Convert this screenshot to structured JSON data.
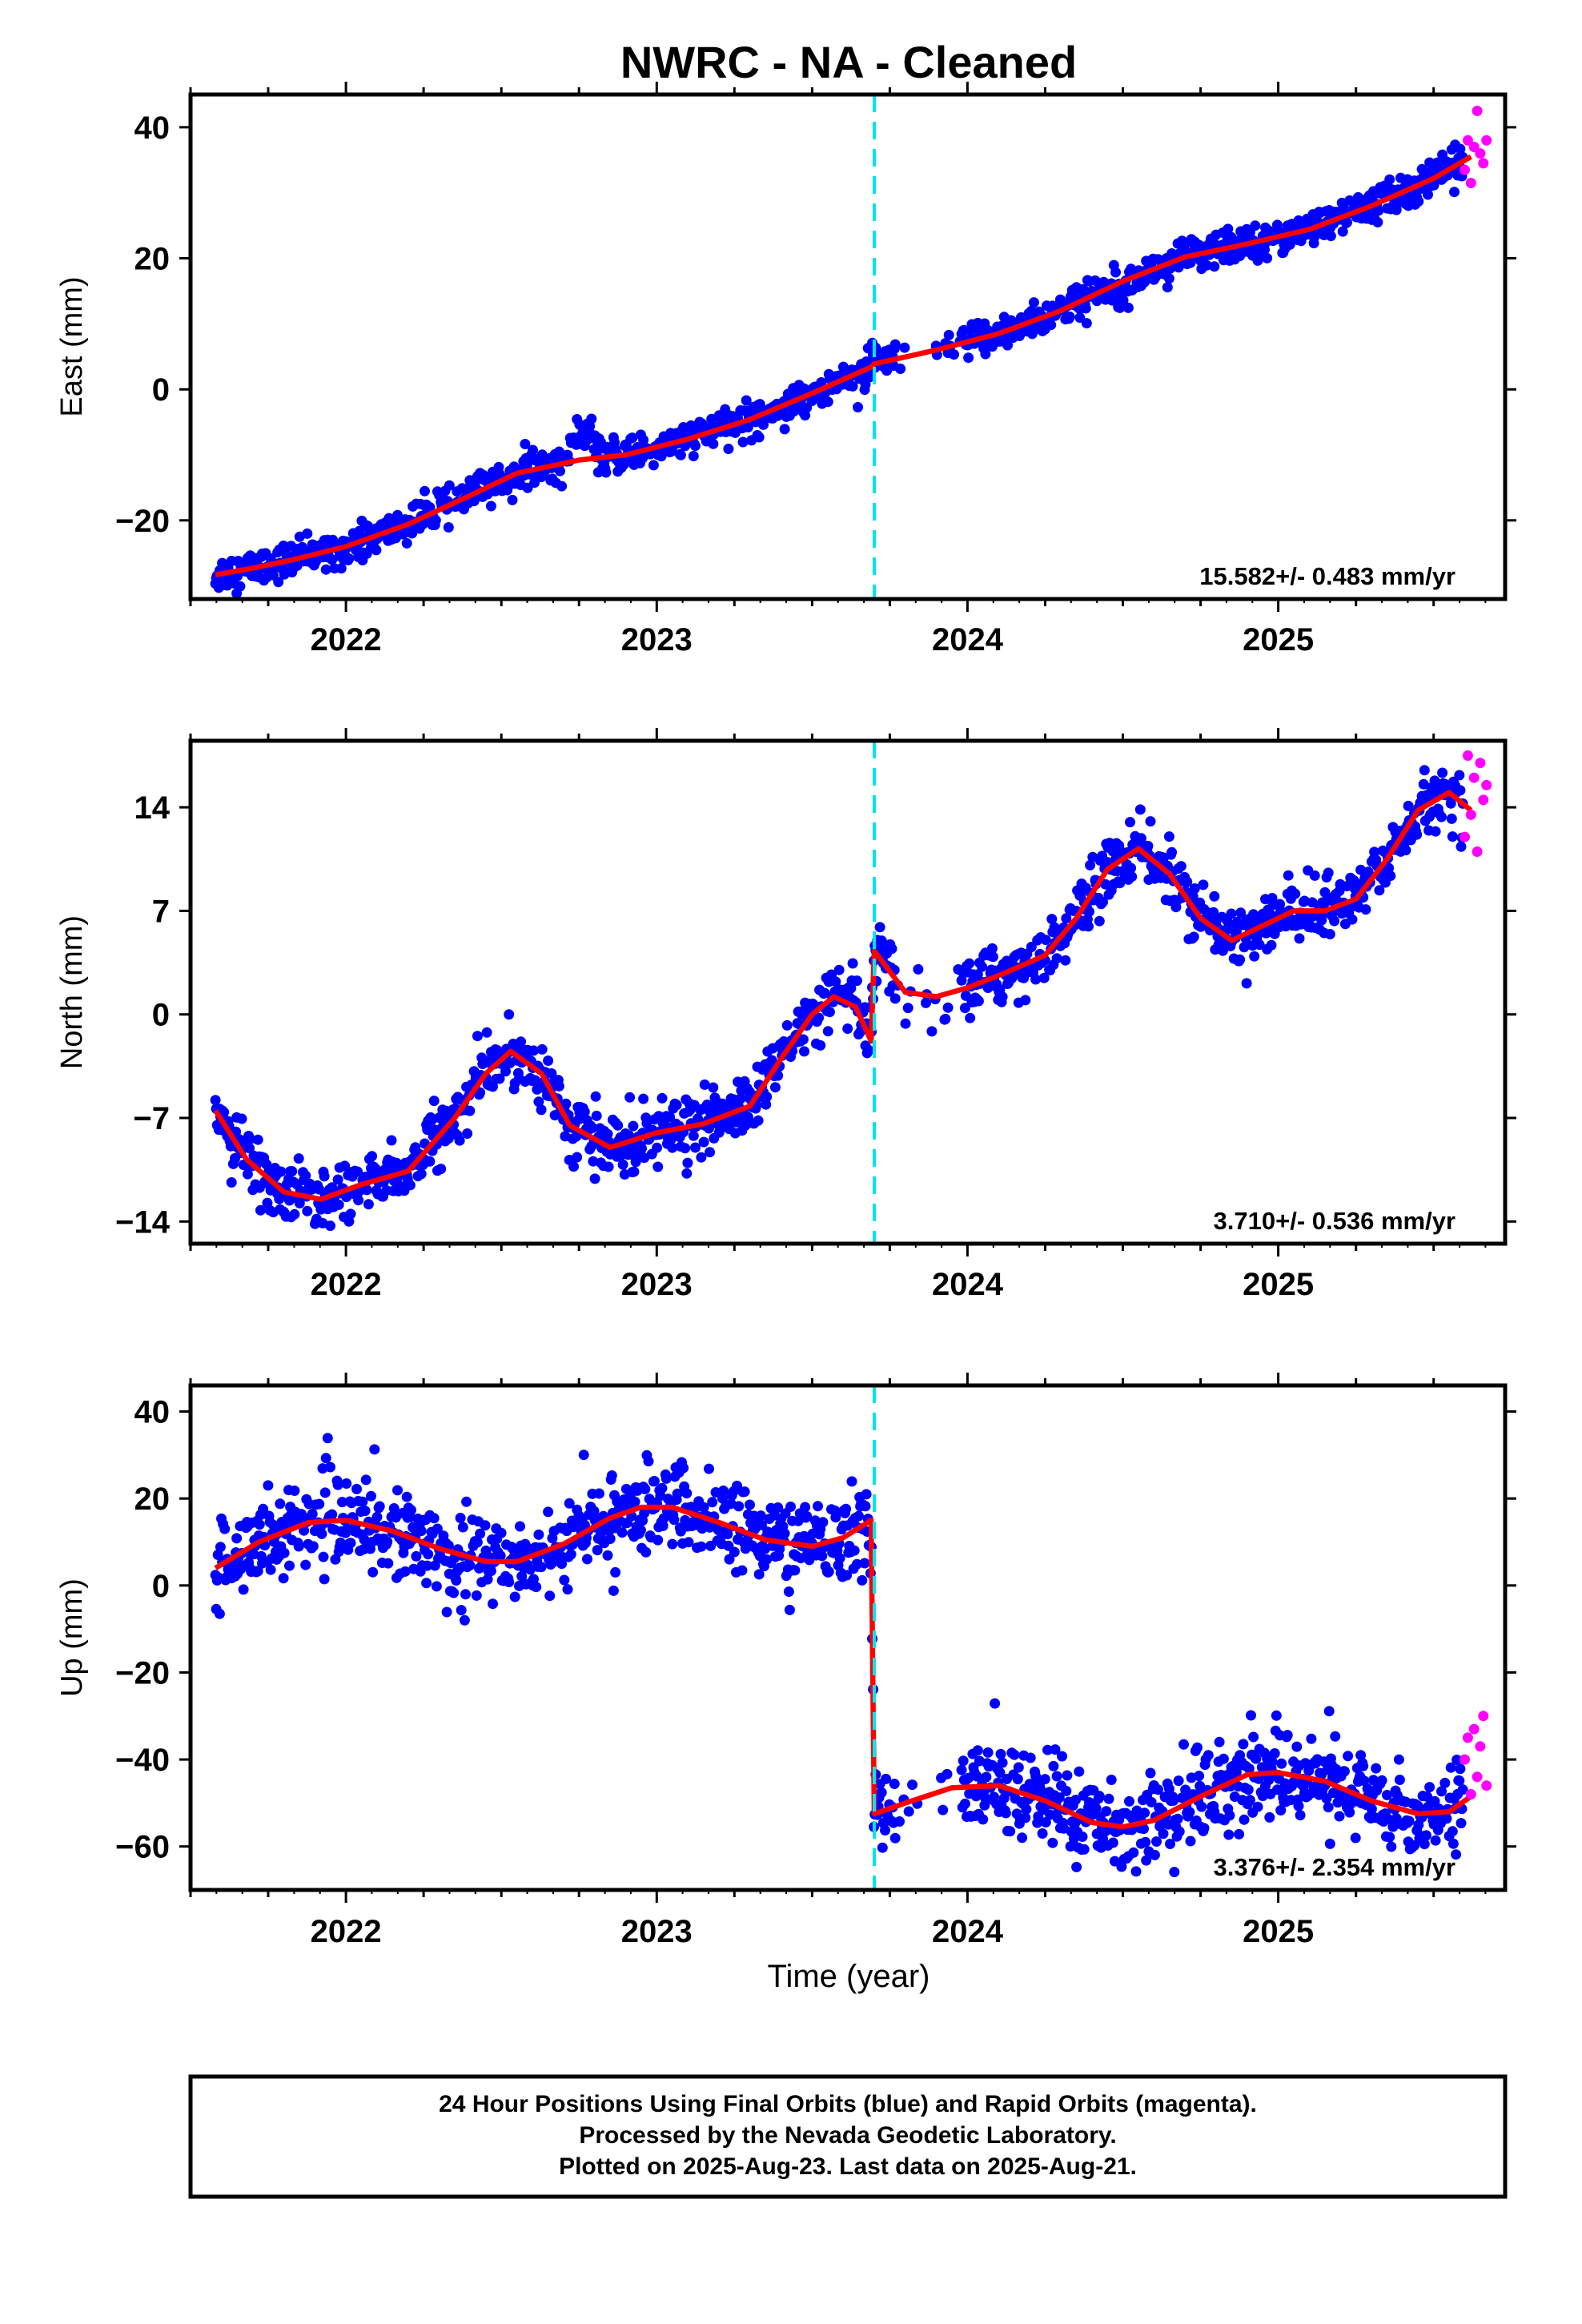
{
  "title": "NWRC  - NA - Cleaned",
  "xlabel": "Time (year)",
  "footer": [
    "24 Hour Positions Using Final Orbits (blue) and Rapid Orbits (magenta).",
    "Processed by the Nevada Geodetic Laboratory.",
    "Plotted on 2025-Aug-23. Last data on 2025-Aug-21."
  ],
  "colors": {
    "final": "#0000ff",
    "rapid": "#ff00ff",
    "model": "#ff0000",
    "offset_line": "#00e5ee",
    "frame": "#000000"
  },
  "chart_data": [
    {
      "type": "scatter",
      "component": "east",
      "ylabel": "East (mm)",
      "xlim": [
        2021.5,
        2025.73
      ],
      "ylim": [
        -32,
        45
      ],
      "xticks": [
        2022,
        2023,
        2024,
        2025
      ],
      "xtick_labels": [
        "2022",
        "2023",
        "2024",
        "2025"
      ],
      "yticks": [
        -20,
        0,
        20,
        40
      ],
      "ytick_labels": [
        "−20",
        "0",
        "20",
        "40"
      ],
      "offset_epoch": 2023.7,
      "rate_label": "15.582+/- 0.483 mm/yr",
      "scatter_sd": 1.3,
      "series": [
        {
          "role": "model",
          "x": [
            2021.58,
            2021.7,
            2021.83,
            2022.0,
            2022.2,
            2022.4,
            2022.55,
            2022.75,
            2022.9,
            2023.1,
            2023.3,
            2023.5,
            2023.69,
            2023.7,
            2023.9,
            2024.1,
            2024.3,
            2024.5,
            2024.7,
            2024.9,
            2025.1,
            2025.3,
            2025.5,
            2025.62
          ],
          "values": [
            -28.3,
            -27.3,
            -26.0,
            -24.0,
            -20.6,
            -16.2,
            -12.8,
            -10.8,
            -10.0,
            -7.6,
            -4.6,
            -0.6,
            3.4,
            3.9,
            6.0,
            8.5,
            12.0,
            16.5,
            20.2,
            22.2,
            24.4,
            28.0,
            32.2,
            35.5
          ]
        },
        {
          "role": "final-orbit-observations",
          "step_offsets": [
            [
              2022.72,
              2022.8,
              3.8
            ]
          ]
        },
        {
          "role": "rapid-orbit-observations",
          "x": [
            2025.6,
            2025.61,
            2025.62,
            2025.63,
            2025.64,
            2025.65,
            2025.66,
            2025.67
          ],
          "values": [
            33.5,
            38.0,
            31.5,
            37.0,
            42.5,
            36.0,
            34.5,
            38.0
          ]
        }
      ]
    },
    {
      "type": "scatter",
      "component": "north",
      "ylabel": "North (mm)",
      "xlim": [
        2021.5,
        2025.73
      ],
      "ylim": [
        -15.5,
        18.5
      ],
      "xticks": [
        2022,
        2023,
        2024,
        2025
      ],
      "xtick_labels": [
        "2022",
        "2023",
        "2024",
        "2025"
      ],
      "yticks": [
        -14,
        -7,
        0,
        7,
        14
      ],
      "ytick_labels": [
        "−14",
        "−7",
        "0",
        "7",
        "14"
      ],
      "offset_epoch": 2023.7,
      "rate_label": "3.710+/- 0.536 mm/yr",
      "scatter_sd": 1.0,
      "series": [
        {
          "role": "model",
          "x": [
            2021.58,
            2021.68,
            2021.8,
            2021.92,
            2022.05,
            2022.2,
            2022.35,
            2022.45,
            2022.53,
            2022.63,
            2022.72,
            2022.85,
            2023.0,
            2023.15,
            2023.3,
            2023.4,
            2023.5,
            2023.57,
            2023.64,
            2023.69,
            2023.7,
            2023.8,
            2023.9,
            2024.0,
            2024.12,
            2024.25,
            2024.35,
            2024.45,
            2024.55,
            2024.65,
            2024.75,
            2024.85,
            2024.95,
            2025.05,
            2025.15,
            2025.25,
            2025.35,
            2025.45,
            2025.55,
            2025.62
          ],
          "values": [
            -6.5,
            -9.8,
            -12.0,
            -12.5,
            -11.5,
            -10.6,
            -7.0,
            -4.0,
            -2.5,
            -4.0,
            -7.5,
            -9.0,
            -8.0,
            -7.4,
            -6.2,
            -3.0,
            0.0,
            1.2,
            0.5,
            -1.8,
            4.3,
            1.5,
            1.2,
            1.8,
            2.8,
            4.0,
            6.5,
            9.8,
            11.2,
            9.5,
            6.5,
            5.0,
            6.0,
            7.0,
            7.0,
            7.8,
            10.5,
            13.8,
            15.0,
            13.8
          ]
        },
        {
          "role": "final-orbit-observations"
        },
        {
          "role": "rapid-orbit-observations",
          "x": [
            2025.6,
            2025.61,
            2025.62,
            2025.63,
            2025.64,
            2025.65,
            2025.66,
            2025.67
          ],
          "values": [
            12.0,
            17.5,
            13.5,
            16.0,
            11.0,
            17.0,
            14.5,
            15.5
          ]
        }
      ]
    },
    {
      "type": "scatter",
      "component": "up",
      "ylabel": "Up (mm)",
      "xlim": [
        2021.5,
        2025.73
      ],
      "ylim": [
        -70,
        46
      ],
      "xticks": [
        2022,
        2023,
        2024,
        2025
      ],
      "xtick_labels": [
        "2022",
        "2023",
        "2024",
        "2025"
      ],
      "yticks": [
        -60,
        -40,
        -20,
        0,
        20,
        40
      ],
      "ytick_labels": [
        "−60",
        "−40",
        "−20",
        "0",
        "20",
        "40"
      ],
      "offset_epoch": 2023.7,
      "rate_label": "3.376+/- 2.354 mm/yr",
      "scatter_sd": 5.0,
      "series": [
        {
          "role": "model",
          "x": [
            2021.58,
            2021.72,
            2021.88,
            2022.0,
            2022.15,
            2022.3,
            2022.45,
            2022.55,
            2022.7,
            2022.85,
            2022.95,
            2023.05,
            2023.2,
            2023.35,
            2023.5,
            2023.6,
            2023.69,
            2023.7,
            2023.8,
            2023.95,
            2024.1,
            2024.25,
            2024.4,
            2024.5,
            2024.6,
            2024.75,
            2024.9,
            2025.0,
            2025.15,
            2025.3,
            2025.45,
            2025.55,
            2025.62
          ],
          "values": [
            4.0,
            10.0,
            14.5,
            15.0,
            12.5,
            8.5,
            5.5,
            5.5,
            9.5,
            15.5,
            18.0,
            18.0,
            14.5,
            10.5,
            9.0,
            11.0,
            15.0,
            -52.5,
            -50.0,
            -46.5,
            -46.0,
            -49.5,
            -54.5,
            -55.5,
            -54.0,
            -48.5,
            -43.5,
            -43.0,
            -45.0,
            -49.5,
            -52.5,
            -52.0,
            -48.5
          ]
        },
        {
          "role": "final-orbit-observations"
        },
        {
          "role": "rapid-orbit-observations",
          "x": [
            2025.6,
            2025.61,
            2025.62,
            2025.63,
            2025.64,
            2025.65,
            2025.66,
            2025.67
          ],
          "values": [
            -40.0,
            -35.0,
            -48.0,
            -33.0,
            -44.0,
            -37.0,
            -30.0,
            -46.0
          ]
        }
      ]
    }
  ]
}
